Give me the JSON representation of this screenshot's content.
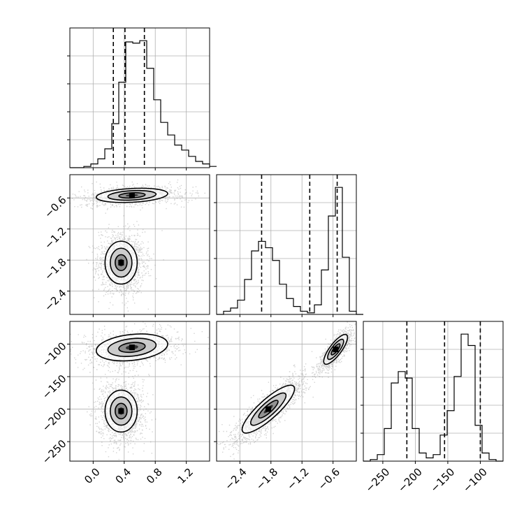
{
  "figure": {
    "background": "#ffffff",
    "grid": true,
    "grid_color": "#b0b0b0",
    "line_color": "#000000",
    "cloud_color": "#808080"
  },
  "chart_data": {
    "type": "corner",
    "parameters": [
      {
        "key": "p0",
        "ticks": [
          0.0,
          0.4,
          0.8,
          1.2
        ],
        "tick_labels": [
          "0.0",
          "0.4",
          "0.8",
          "1.2"
        ],
        "range": [
          -0.3,
          1.5
        ]
      },
      {
        "key": "p1",
        "ticks": [
          -2.4,
          -1.8,
          -1.2,
          -0.6
        ],
        "tick_labels": [
          "−2.4",
          "−1.8",
          "−1.2",
          "−0.6"
        ],
        "range": [
          -2.85,
          -0.15
        ]
      },
      {
        "key": "p2",
        "ticks": [
          -250,
          -200,
          -150,
          -100
        ],
        "tick_labels": [
          "−250",
          "−200",
          "−150",
          "−100"
        ],
        "range": [
          -280,
          -65
        ]
      }
    ],
    "quantiles": [
      [
        0.26,
        0.41,
        0.66
      ],
      [
        -1.98,
        -1.05,
        -0.52
      ],
      [
        -213,
        -155,
        -100
      ]
    ],
    "histograms": [
      {
        "edges_start": -0.3,
        "bin_width": 0.09,
        "counts": [
          0,
          0,
          1,
          3,
          7,
          15,
          35,
          68,
          100,
          99,
          101,
          79,
          54,
          36,
          26,
          18,
          14,
          9,
          5,
          3,
          1
        ]
      },
      {
        "edges_start": -2.85,
        "bin_width": 0.135,
        "counts": [
          0,
          2,
          4,
          9,
          22,
          40,
          46,
          42,
          34,
          19,
          10,
          5,
          2,
          1,
          6,
          28,
          62,
          80,
          36,
          2,
          0
        ]
      },
      {
        "edges_start": -280,
        "bin_width": 10.75,
        "counts": [
          0,
          1,
          4,
          20,
          48,
          55,
          51,
          20,
          5,
          2,
          4,
          16,
          31,
          52,
          78,
          71,
          22,
          5,
          1,
          0
        ]
      }
    ],
    "modes_2d": [
      {
        "x": 0.5,
        "y": -0.55,
        "sx": 0.2,
        "sy": 0.06,
        "rho": 0.25,
        "weight": 0.4
      },
      {
        "x": 0.36,
        "y": -1.85,
        "sx": 0.09,
        "sy": 0.18,
        "rho": 0.0,
        "weight": 0.6
      }
    ],
    "modes_p0_p2": [
      {
        "x": 0.5,
        "y": -105,
        "sx": 0.2,
        "sy": 9,
        "rho": 0.25,
        "weight": 0.4
      },
      {
        "x": 0.36,
        "y": -203,
        "sx": 0.09,
        "sy": 14,
        "rho": 0.0,
        "weight": 0.6
      }
    ],
    "modes_p1_p2": [
      {
        "x": -0.55,
        "y": -108,
        "sx": 0.1,
        "sy": 10,
        "rho": 0.8,
        "weight": 0.4
      },
      {
        "x": -1.85,
        "y": -200,
        "sx": 0.22,
        "sy": 16,
        "rho": 0.85,
        "weight": 0.6
      }
    ]
  }
}
